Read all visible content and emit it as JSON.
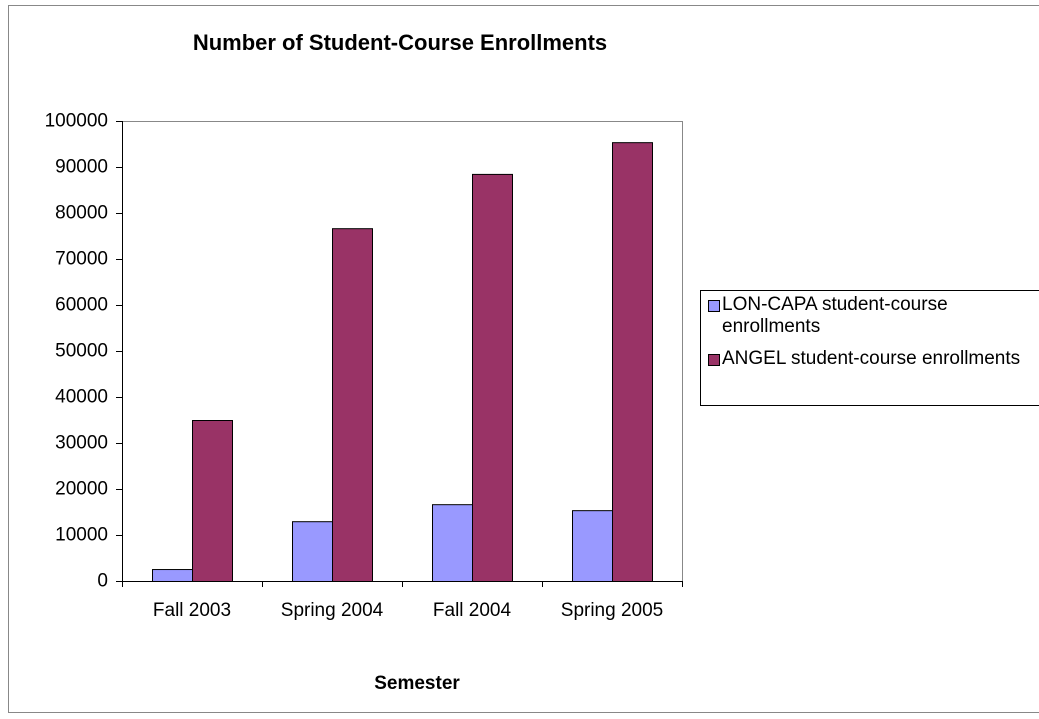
{
  "chart_data": {
    "type": "bar",
    "title": "Number of Student-Course Enrollments",
    "x_label": "Semester",
    "categories": [
      "Fall 2003",
      "Spring 2004",
      "Fall 2004",
      "Spring 2005"
    ],
    "series": [
      {
        "name": "LON-CAPA student-course enrollments",
        "color": "#9999ff",
        "values": [
          2600,
          13000,
          16700,
          15400
        ]
      },
      {
        "name": "ANGEL student-course enrollments",
        "color": "#993366",
        "values": [
          35000,
          76700,
          88500,
          95400
        ]
      }
    ],
    "ylim": [
      0,
      100000
    ],
    "yticks": [
      0,
      10000,
      20000,
      30000,
      40000,
      50000,
      60000,
      70000,
      80000,
      90000,
      100000
    ],
    "grid": false,
    "legend": "right"
  }
}
